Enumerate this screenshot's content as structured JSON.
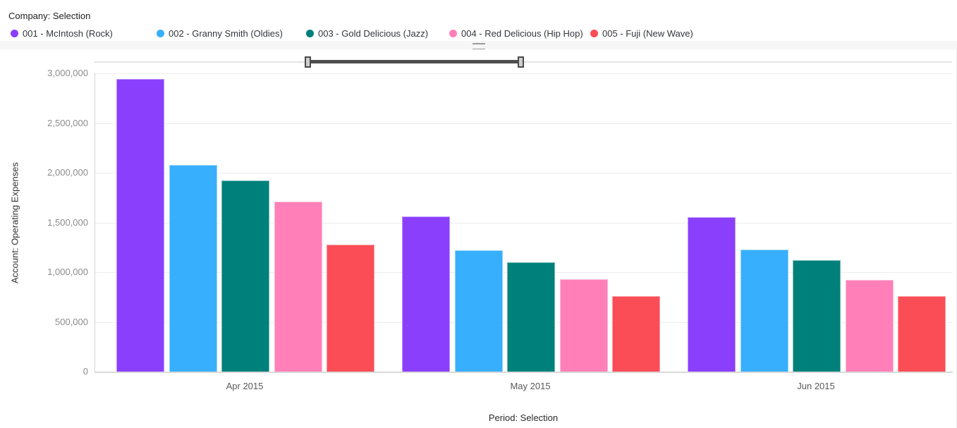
{
  "header": {
    "company_label": "Company: Selection"
  },
  "legend": {
    "items": [
      {
        "label": "001 - McIntosh (Rock)",
        "color": "#8A3FFC"
      },
      {
        "label": "002 - Granny Smith (Oldies)",
        "color": "#38AFFC"
      },
      {
        "label": "003 - Gold Delicious (Jazz)",
        "color": "#00807A"
      },
      {
        "label": "004 - Red Delicious (Hip Hop)",
        "color": "#FF80B8"
      },
      {
        "label": "005 - Fuji (New Wave)",
        "color": "#FA4D56"
      }
    ]
  },
  "chart_data": {
    "type": "bar",
    "categories": [
      "Apr 2015",
      "May 2015",
      "Jun 2015"
    ],
    "series": [
      {
        "name": "001 - McIntosh (Rock)",
        "color": "#8A3FFC",
        "values": [
          2940000,
          1560000,
          1550000
        ]
      },
      {
        "name": "002 - Granny Smith (Oldies)",
        "color": "#38AFFC",
        "values": [
          2080000,
          1220000,
          1230000
        ]
      },
      {
        "name": "003 - Gold Delicious (Jazz)",
        "color": "#00807A",
        "values": [
          1920000,
          1100000,
          1120000
        ]
      },
      {
        "name": "004 - Red Delicious (Hip Hop)",
        "color": "#FF80B8",
        "values": [
          1710000,
          930000,
          920000
        ]
      },
      {
        "name": "005 - Fuji (New Wave)",
        "color": "#FA4D56",
        "values": [
          1280000,
          760000,
          760000
        ]
      }
    ],
    "title": "",
    "xlabel": "Period: Selection",
    "ylabel": "Account: Operating Expenses",
    "ylim": [
      0,
      3000000
    ],
    "ytick_step": 500000,
    "ytick_labels": [
      "0",
      "500,000",
      "1,000,000",
      "1,500,000",
      "2,000,000",
      "2,500,000",
      "3,000,000"
    ],
    "grid": true,
    "legend_position": "top"
  },
  "zoom_slider": {
    "selected_start_pct": 24.9,
    "selected_end_pct": 49.7
  }
}
